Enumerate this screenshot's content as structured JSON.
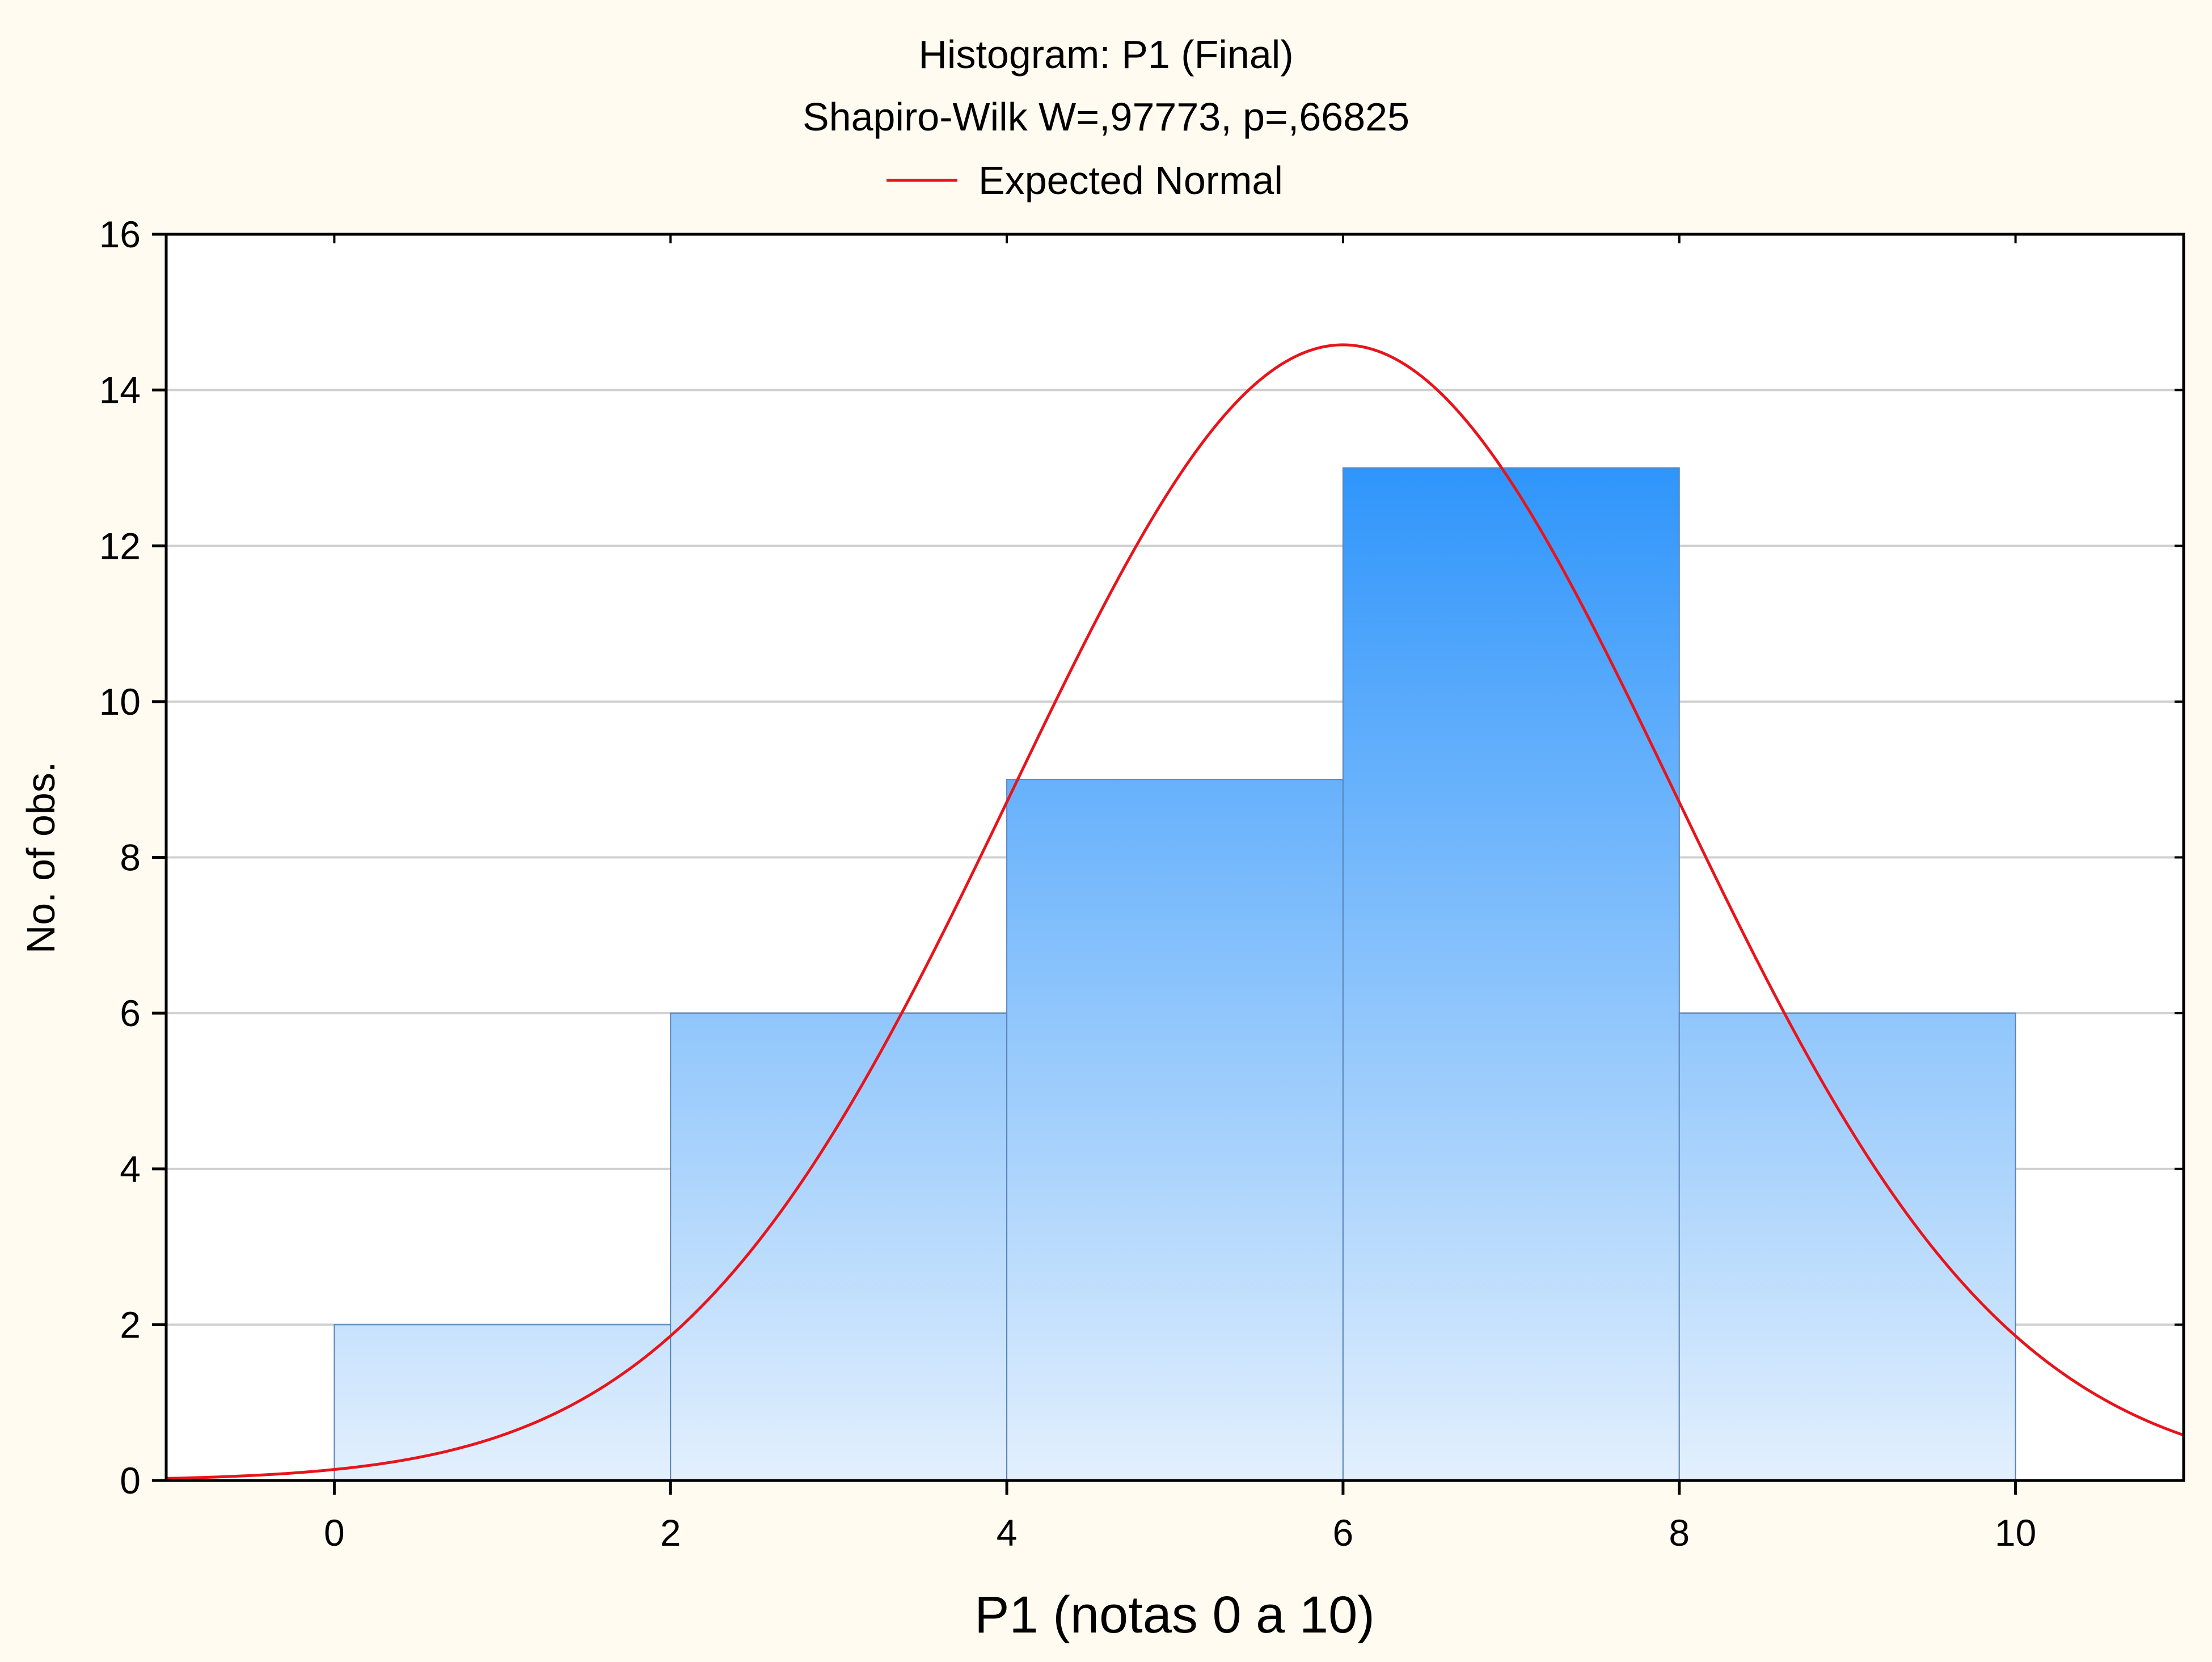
{
  "chart_data": {
    "type": "bar",
    "title": "Histogram: P1 (Final)",
    "subtitle": "Shapiro-Wilk W=,97773, p=,66825",
    "xlabel": "P1 (notas 0 a 10)",
    "ylabel": "No. of obs.",
    "xlim": [
      -1,
      11
    ],
    "ylim": [
      0,
      16
    ],
    "x_ticks": [
      0,
      2,
      4,
      6,
      8,
      10
    ],
    "y_ticks": [
      0,
      2,
      4,
      6,
      8,
      10,
      12,
      14,
      16
    ],
    "grid": true,
    "bins": [
      {
        "start": 0,
        "end": 2,
        "count": 2
      },
      {
        "start": 2,
        "end": 4,
        "count": 6
      },
      {
        "start": 4,
        "end": 6,
        "count": 9
      },
      {
        "start": 6,
        "end": 8,
        "count": 13
      },
      {
        "start": 8,
        "end": 10,
        "count": 6
      }
    ],
    "normal_curve": {
      "name": "Expected Normal",
      "mean": 6.0,
      "sd": 1.97,
      "n": 36,
      "bin_width": 2
    },
    "legend": {
      "position": "top-center",
      "entries": [
        "Expected Normal"
      ]
    },
    "colors": {
      "bar_top": "#2f95fb",
      "bar_bottom": "#e3f0fd",
      "bar_edge": "#5a84b8",
      "curve": "#e8141c",
      "grid": "#d0d0d0",
      "plot_bg": "#ffffff",
      "page_bg": "#fffbf0"
    }
  }
}
